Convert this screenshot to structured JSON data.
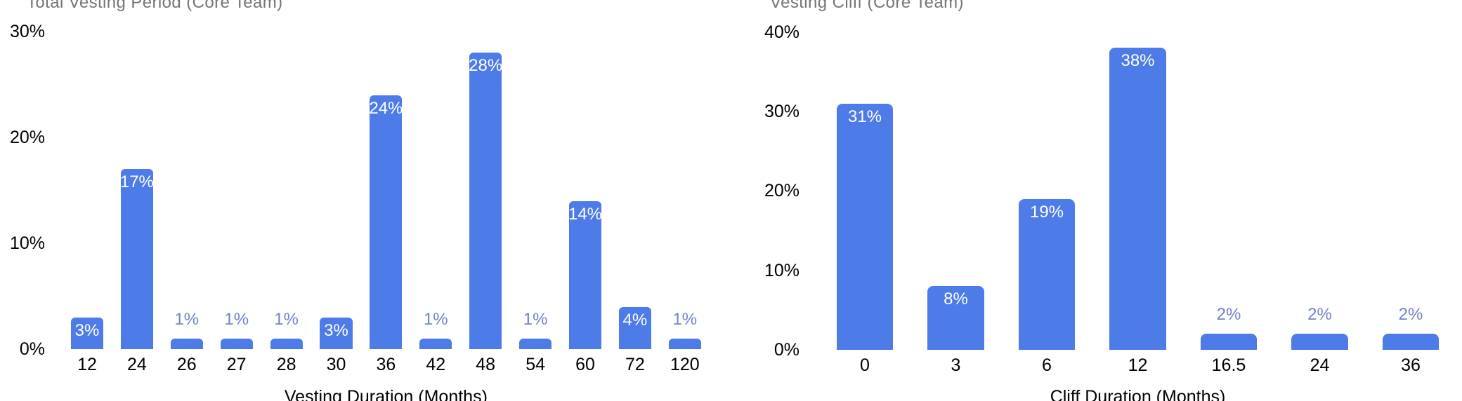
{
  "chart_data": [
    {
      "type": "bar",
      "title": "Total Vesting Period (Core Team)",
      "xlabel": "Vesting Duration (Months)",
      "ylabel": "",
      "categories": [
        "12",
        "24",
        "26",
        "27",
        "28",
        "30",
        "36",
        "42",
        "48",
        "54",
        "60",
        "72",
        "120"
      ],
      "values": [
        3,
        17,
        1,
        1,
        1,
        3,
        24,
        1,
        28,
        1,
        14,
        4,
        1
      ],
      "value_labels": [
        "3%",
        "17%",
        "1%",
        "1%",
        "1%",
        "3%",
        "24%",
        "1%",
        "28%",
        "1%",
        "14%",
        "4%",
        "1%"
      ],
      "y_ticks": [
        "30%",
        "20%",
        "10%",
        "0%"
      ],
      "ylim": [
        0,
        30
      ],
      "grid": "off",
      "legend": "none"
    },
    {
      "type": "bar",
      "title": "Vesting Cliff (Core Team)",
      "xlabel": "Cliff Duration (Months)",
      "ylabel": "",
      "categories": [
        "0",
        "3",
        "6",
        "12",
        "16.5",
        "24",
        "36"
      ],
      "values": [
        31,
        8,
        19,
        38,
        2,
        2,
        2
      ],
      "value_labels": [
        "31%",
        "8%",
        "19%",
        "38%",
        "2%",
        "2%",
        "2%"
      ],
      "y_ticks": [
        "40%",
        "30%",
        "20%",
        "10%",
        "0%"
      ],
      "ylim": [
        0,
        40
      ],
      "grid": "off",
      "legend": "none"
    }
  ],
  "colors": {
    "bar": "#4d7ce8",
    "label_inside_bar": "#ffffff",
    "label_above_bar": "#7184c6",
    "chart_title": "#757575",
    "axis_text": "#000000",
    "background": "#ffffff"
  }
}
